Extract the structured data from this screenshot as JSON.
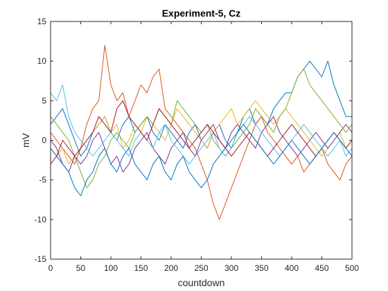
{
  "chart_data": {
    "type": "line",
    "title": "Experiment-5, Cz",
    "xlabel": "countdown",
    "ylabel": "mV",
    "xlim": [
      0,
      500
    ],
    "ylim": [
      -15,
      15
    ],
    "xticks": [
      "0",
      "50",
      "100",
      "150",
      "200",
      "250",
      "300",
      "350",
      "400",
      "450",
      "500"
    ],
    "yticks": [
      "15",
      "10",
      "5",
      "0",
      "-5",
      "-10",
      "-15"
    ],
    "grid": false,
    "legend": "none",
    "sample_step": 10,
    "x": [
      0,
      10,
      20,
      30,
      40,
      50,
      60,
      70,
      80,
      90,
      100,
      110,
      120,
      130,
      140,
      150,
      160,
      170,
      180,
      190,
      200,
      210,
      220,
      230,
      240,
      250,
      260,
      270,
      280,
      290,
      300,
      310,
      320,
      330,
      340,
      350,
      360,
      370,
      380,
      390,
      400,
      410,
      420,
      430,
      440,
      450,
      460,
      470,
      480,
      490,
      500
    ],
    "series": [
      {
        "color": "#0072bd",
        "values": [
          2,
          3,
          4,
          2,
          0,
          -2,
          -1,
          1,
          2,
          3,
          1,
          0,
          2,
          3,
          1,
          2,
          3,
          1,
          0,
          2,
          1,
          0,
          -1,
          1,
          2,
          0,
          -1,
          1,
          2,
          0,
          -1,
          1,
          3,
          4,
          2,
          3,
          2,
          4,
          5,
          6,
          6,
          8,
          9,
          10,
          9,
          8,
          10,
          7,
          5,
          3,
          3
        ]
      },
      {
        "color": "#d95319",
        "values": [
          1,
          0,
          -1,
          -2,
          -3,
          -1,
          2,
          4,
          5,
          12,
          7,
          5,
          6,
          3,
          5,
          7,
          6,
          8,
          9,
          4,
          3,
          2,
          1,
          0,
          -1,
          -3,
          -5,
          -8,
          -10,
          -8,
          -6,
          -4,
          -2,
          0,
          2,
          3,
          1,
          0,
          -1,
          -2,
          -3,
          -2,
          -4,
          -3,
          -2,
          -1,
          -3,
          -4,
          -5,
          -3,
          -2
        ]
      },
      {
        "color": "#edb120",
        "values": [
          -1,
          -2,
          -1,
          -3,
          -2,
          -1,
          0,
          1,
          2,
          3,
          1,
          2,
          -1,
          0,
          2,
          1,
          3,
          2,
          1,
          0,
          2,
          4,
          3,
          2,
          1,
          0,
          -1,
          1,
          2,
          3,
          4,
          2,
          3,
          4,
          5,
          4,
          3,
          2,
          3,
          4,
          3,
          2,
          1,
          0,
          -1,
          -2,
          -1,
          0,
          1,
          -1,
          0
        ]
      },
      {
        "color": "#7e2f8e",
        "values": [
          0,
          -1,
          -3,
          -4,
          -2,
          -3,
          -2,
          0,
          1,
          -1,
          -3,
          -2,
          -4,
          -3,
          -1,
          0,
          1,
          -1,
          -2,
          -3,
          -1,
          0,
          1,
          -1,
          -2,
          0,
          1,
          2,
          0,
          -1,
          1,
          2,
          1,
          0,
          -1,
          1,
          2,
          3,
          1,
          0,
          -1,
          -2,
          -1,
          0,
          1,
          0,
          -1,
          0,
          1,
          2,
          1
        ]
      },
      {
        "color": "#77ac30",
        "values": [
          3,
          2,
          1,
          0,
          -2,
          -4,
          -6,
          -5,
          -3,
          -2,
          0,
          1,
          0,
          -1,
          1,
          2,
          3,
          2,
          4,
          3,
          2,
          5,
          4,
          3,
          2,
          1,
          2,
          0,
          -1,
          -2,
          -1,
          0,
          1,
          2,
          4,
          3,
          2,
          1,
          3,
          4,
          6,
          8,
          9,
          7,
          6,
          5,
          4,
          3,
          2,
          1,
          2
        ]
      },
      {
        "color": "#4dbeee",
        "values": [
          6,
          5,
          7,
          3,
          1,
          0,
          -1,
          -2,
          -1,
          0,
          1,
          0,
          -1,
          -2,
          0,
          1,
          0,
          -1,
          1,
          2,
          0,
          -1,
          -2,
          -3,
          -2,
          -1,
          0,
          1,
          -1,
          -2,
          -1,
          1,
          2,
          3,
          2,
          1,
          0,
          -1,
          -2,
          -1,
          0,
          1,
          2,
          1,
          0,
          -1,
          -2,
          -1,
          0,
          -2,
          -1
        ]
      },
      {
        "color": "#a2142f",
        "values": [
          -3,
          -2,
          0,
          -1,
          -2,
          -1,
          0,
          1,
          3,
          2,
          1,
          4,
          5,
          3,
          2,
          1,
          0,
          2,
          4,
          3,
          2,
          1,
          0,
          -1,
          0,
          1,
          2,
          1,
          0,
          -1,
          -2,
          -1,
          0,
          1,
          0,
          -1,
          -2,
          -1,
          0,
          1,
          2,
          1,
          0,
          -1,
          -2,
          -1,
          0,
          1,
          0,
          -1,
          0
        ]
      },
      {
        "color": "#0072bd",
        "values": [
          -1,
          -2,
          -3,
          -4,
          -6,
          -7,
          -5,
          -4,
          -2,
          -1,
          -3,
          -4,
          -2,
          -1,
          -3,
          -4,
          -5,
          -3,
          -2,
          -4,
          -5,
          -3,
          -2,
          -4,
          -5,
          -6,
          -5,
          -3,
          -2,
          -1,
          0,
          1,
          2,
          1,
          0,
          -1,
          -2,
          -3,
          -2,
          -1,
          0,
          -1,
          -2,
          -3,
          -2,
          -1,
          0,
          1,
          0,
          -1,
          -2
        ]
      }
    ]
  }
}
